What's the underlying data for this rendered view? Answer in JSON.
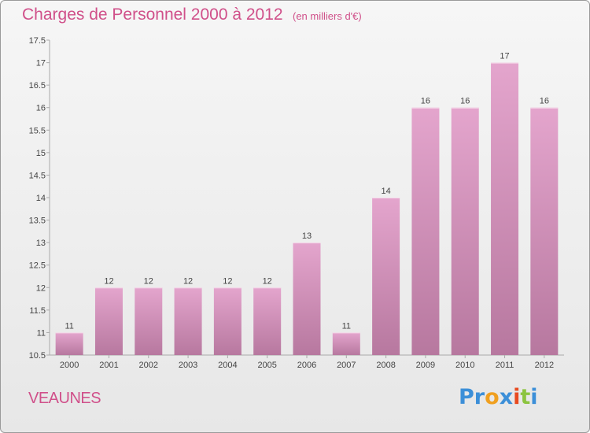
{
  "header": {
    "title": "Charges de Personnel 2000 à 2012",
    "subtitle": "(en milliers d'€)"
  },
  "footer": {
    "place": "VEAUNES",
    "logo": {
      "text": "Proxiti",
      "letters": [
        {
          "ch": "P",
          "color": "#3c8fd8"
        },
        {
          "ch": "r",
          "color": "#3c8fd8"
        },
        {
          "ch": "o",
          "color": "#f0a020"
        },
        {
          "ch": "x",
          "color": "#3c8fd8"
        },
        {
          "ch": "i",
          "color": "#e84a20"
        },
        {
          "ch": "t",
          "color": "#8cc440"
        },
        {
          "ch": "i",
          "color": "#3c8fd8"
        }
      ]
    }
  },
  "colors": {
    "bar_top": "#e4a5cd",
    "bar_bottom": "#b7789f",
    "text_accent": "#d0508a"
  },
  "chart_data": {
    "type": "bar",
    "title": "Charges de Personnel 2000 à 2012",
    "subtitle": "(en milliers d'€)",
    "xlabel": "",
    "ylabel": "",
    "categories": [
      "2000",
      "2001",
      "2002",
      "2003",
      "2004",
      "2005",
      "2006",
      "2007",
      "2008",
      "2009",
      "2010",
      "2011",
      "2012"
    ],
    "values": [
      11,
      12,
      12,
      12,
      12,
      12,
      13,
      11,
      14,
      16,
      16,
      17,
      16
    ],
    "data_labels": [
      "11",
      "12",
      "12",
      "12",
      "12",
      "12",
      "13",
      "11",
      "14",
      "16",
      "16",
      "17",
      "16"
    ],
    "ylim": [
      10.5,
      17.5
    ],
    "yticks": [
      "10.5",
      "11",
      "11.5",
      "12",
      "12.5",
      "13",
      "13.5",
      "14",
      "14.5",
      "15",
      "15.5",
      "16",
      "16.5",
      "17",
      "17.5"
    ],
    "grid": false,
    "legend": "none"
  }
}
